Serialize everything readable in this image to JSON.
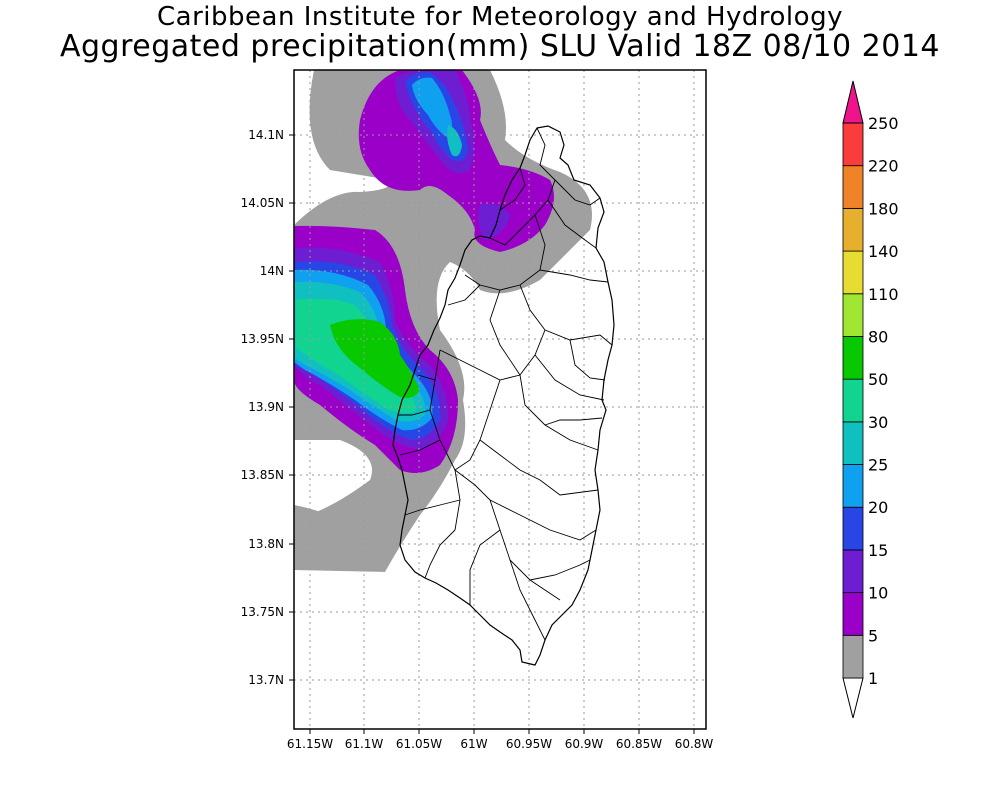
{
  "header": {
    "title_line1": "Caribbean Institute for Meteorology and Hydrology",
    "title_line2": "Aggregated precipitation(mm) SLU Valid 18Z 08/10 2014"
  },
  "map": {
    "lon_ticks": [
      "61.15W",
      "61.1W",
      "61.05W",
      "61W",
      "60.95W",
      "60.9W",
      "60.85W",
      "60.8W"
    ],
    "lat_ticks": [
      "14.1N",
      "14.05N",
      "14N",
      "13.95N",
      "13.9N",
      "13.85N",
      "13.8N",
      "13.75N",
      "13.7N"
    ]
  },
  "colorbar": {
    "labels": [
      "1",
      "5",
      "10",
      "15",
      "20",
      "25",
      "30",
      "50",
      "80",
      "110",
      "140",
      "180",
      "220",
      "250"
    ],
    "colors": [
      "#ffffff",
      "#a0a0a0",
      "#9a00c8",
      "#6e1ed2",
      "#2846e6",
      "#10a0f0",
      "#10c0c0",
      "#10d490",
      "#08c800",
      "#a0e632",
      "#e6dc32",
      "#e6af2d",
      "#f08228",
      "#fa3c3c",
      "#f0148c"
    ]
  }
}
